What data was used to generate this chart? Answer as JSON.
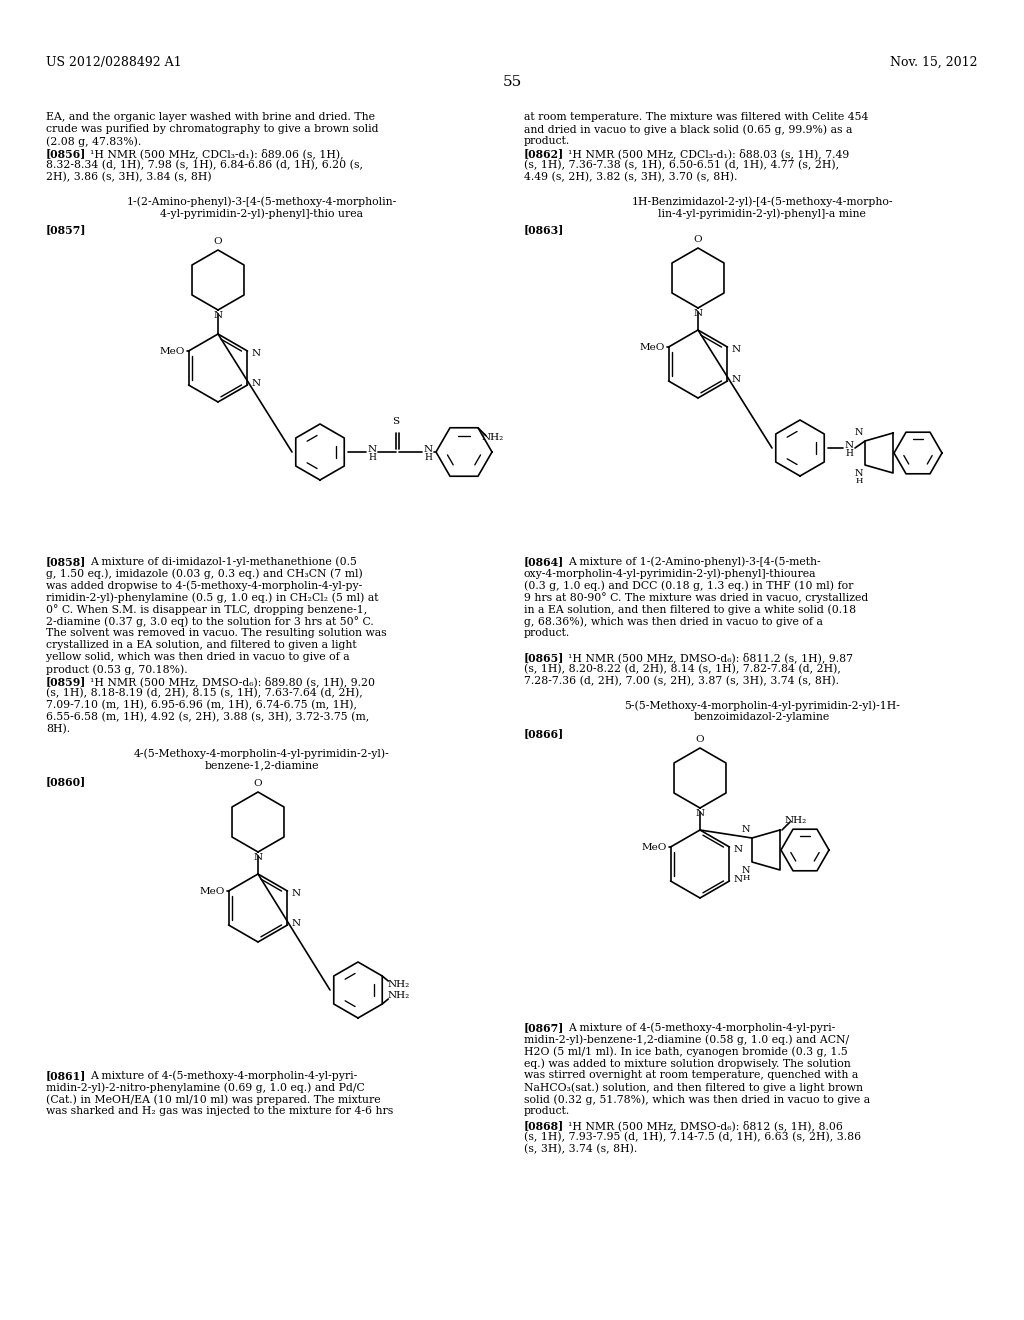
{
  "page_header_left": "US 2012/0288492 A1",
  "page_header_right": "Nov. 15, 2012",
  "page_number": "55",
  "bg": "#ffffff",
  "tc": "#000000",
  "figsize": [
    10.24,
    13.2
  ],
  "dpi": 100
}
